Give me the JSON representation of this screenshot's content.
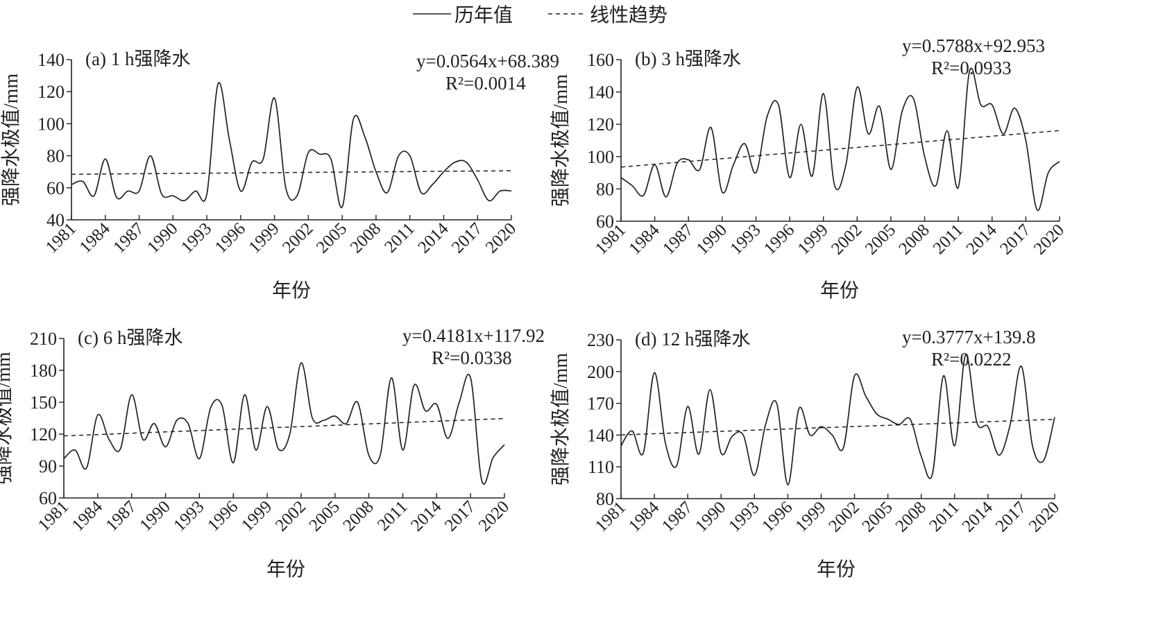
{
  "legend": {
    "series_label": "历年值",
    "trend_label": "线性趋势"
  },
  "chart_data": [
    {
      "type": "line",
      "title": "(a) 1 h强降水",
      "xlabel": "年份",
      "ylabel": "强降水极值/mm",
      "ylim": [
        40,
        140
      ],
      "yticks": [
        40,
        60,
        80,
        100,
        120,
        140
      ],
      "equation": "y=0.0564x+68.389",
      "r2": "R²=0.0014",
      "trend": {
        "slope": 0.0564,
        "intercept": 68.389
      },
      "x": [
        1981,
        1982,
        1983,
        1984,
        1985,
        1986,
        1987,
        1988,
        1989,
        1990,
        1991,
        1992,
        1993,
        1994,
        1995,
        1996,
        1997,
        1998,
        1999,
        2000,
        2001,
        2002,
        2003,
        2004,
        2005,
        2006,
        2007,
        2008,
        2009,
        2010,
        2011,
        2012,
        2013,
        2014,
        2015,
        2016,
        2017,
        2018,
        2019,
        2020
      ],
      "values": [
        62,
        64,
        55,
        78,
        54,
        58,
        58,
        80,
        56,
        55,
        52,
        58,
        56,
        125,
        90,
        58,
        76,
        78,
        116,
        60,
        55,
        82,
        81,
        78,
        48,
        103,
        92,
        70,
        57,
        80,
        80,
        57,
        62,
        70,
        76,
        76,
        65,
        52,
        58,
        58
      ]
    },
    {
      "type": "line",
      "title": "(b) 3 h强降水",
      "xlabel": "年份",
      "ylabel": "强降水极值/mm",
      "ylim": [
        60,
        160
      ],
      "yticks": [
        60,
        80,
        100,
        120,
        140,
        160
      ],
      "equation": "y=0.5788x+92.953",
      "r2": "R²=0.0933",
      "trend": {
        "slope": 0.5788,
        "intercept": 92.953
      },
      "x": [
        1981,
        1982,
        1983,
        1984,
        1985,
        1986,
        1987,
        1988,
        1989,
        1990,
        1991,
        1992,
        1993,
        1994,
        1995,
        1996,
        1997,
        1998,
        1999,
        2000,
        2001,
        2002,
        2003,
        2004,
        2005,
        2006,
        2007,
        2008,
        2009,
        2010,
        2011,
        2012,
        2013,
        2014,
        2015,
        2016,
        2017,
        2018,
        2019,
        2020
      ],
      "values": [
        87,
        82,
        76,
        95,
        75,
        96,
        98,
        92,
        118,
        78,
        95,
        108,
        90,
        125,
        132,
        87,
        120,
        88,
        139,
        82,
        95,
        143,
        114,
        131,
        92,
        128,
        136,
        100,
        82,
        116,
        81,
        153,
        132,
        132,
        114,
        130,
        110,
        67,
        90,
        97
      ]
    },
    {
      "type": "line",
      "title": "(c) 6 h强降水",
      "xlabel": "年份",
      "ylabel": "强降水极值/mm",
      "ylim": [
        60,
        210
      ],
      "yticks": [
        60,
        90,
        120,
        150,
        180,
        210
      ],
      "equation": "y=0.4181x+117.92",
      "r2": "R²=0.0338",
      "trend": {
        "slope": 0.4181,
        "intercept": 117.92
      },
      "x": [
        1981,
        1982,
        1983,
        1984,
        1985,
        1986,
        1987,
        1988,
        1989,
        1990,
        1991,
        1992,
        1993,
        1994,
        1995,
        1996,
        1997,
        1998,
        1999,
        2000,
        2001,
        2002,
        2003,
        2004,
        2005,
        2006,
        2007,
        2008,
        2009,
        2010,
        2011,
        2012,
        2013,
        2014,
        2015,
        2016,
        2017,
        2018,
        2019,
        2020
      ],
      "values": [
        97,
        105,
        88,
        138,
        115,
        106,
        157,
        115,
        130,
        108,
        133,
        130,
        97,
        145,
        147,
        93,
        157,
        105,
        146,
        106,
        120,
        187,
        135,
        133,
        137,
        130,
        150,
        100,
        100,
        173,
        105,
        166,
        142,
        148,
        116,
        150,
        173,
        76,
        98,
        110
      ]
    },
    {
      "type": "line",
      "title": "(d) 12 h强降水",
      "xlabel": "年份",
      "ylabel": "强降水极值/mm",
      "ylim": [
        80,
        230
      ],
      "yticks": [
        80,
        110,
        140,
        170,
        200,
        230
      ],
      "equation": "y=0.3777x+139.8",
      "r2": "R²=0.0222",
      "trend": {
        "slope": 0.3777,
        "intercept": 139.8
      },
      "x": [
        1981,
        1982,
        1983,
        1984,
        1985,
        1986,
        1987,
        1988,
        1989,
        1990,
        1991,
        1992,
        1993,
        1994,
        1995,
        1996,
        1997,
        1998,
        1999,
        2000,
        2001,
        2002,
        2003,
        2004,
        2005,
        2006,
        2007,
        2008,
        2009,
        2010,
        2011,
        2012,
        2013,
        2014,
        2015,
        2016,
        2017,
        2018,
        2019,
        2020
      ],
      "values": [
        130,
        144,
        123,
        199,
        132,
        111,
        167,
        122,
        183,
        123,
        139,
        140,
        102,
        150,
        170,
        93,
        165,
        140,
        148,
        140,
        128,
        196,
        177,
        160,
        155,
        150,
        155,
        120,
        103,
        196,
        130,
        216,
        152,
        148,
        121,
        150,
        205,
        130,
        116,
        157
      ]
    }
  ],
  "xtick_labels": [
    "1981",
    "1984",
    "1987",
    "1990",
    "1993",
    "1996",
    "1999",
    "2002",
    "2005",
    "2008",
    "2011",
    "2014",
    "2017",
    "2020"
  ]
}
